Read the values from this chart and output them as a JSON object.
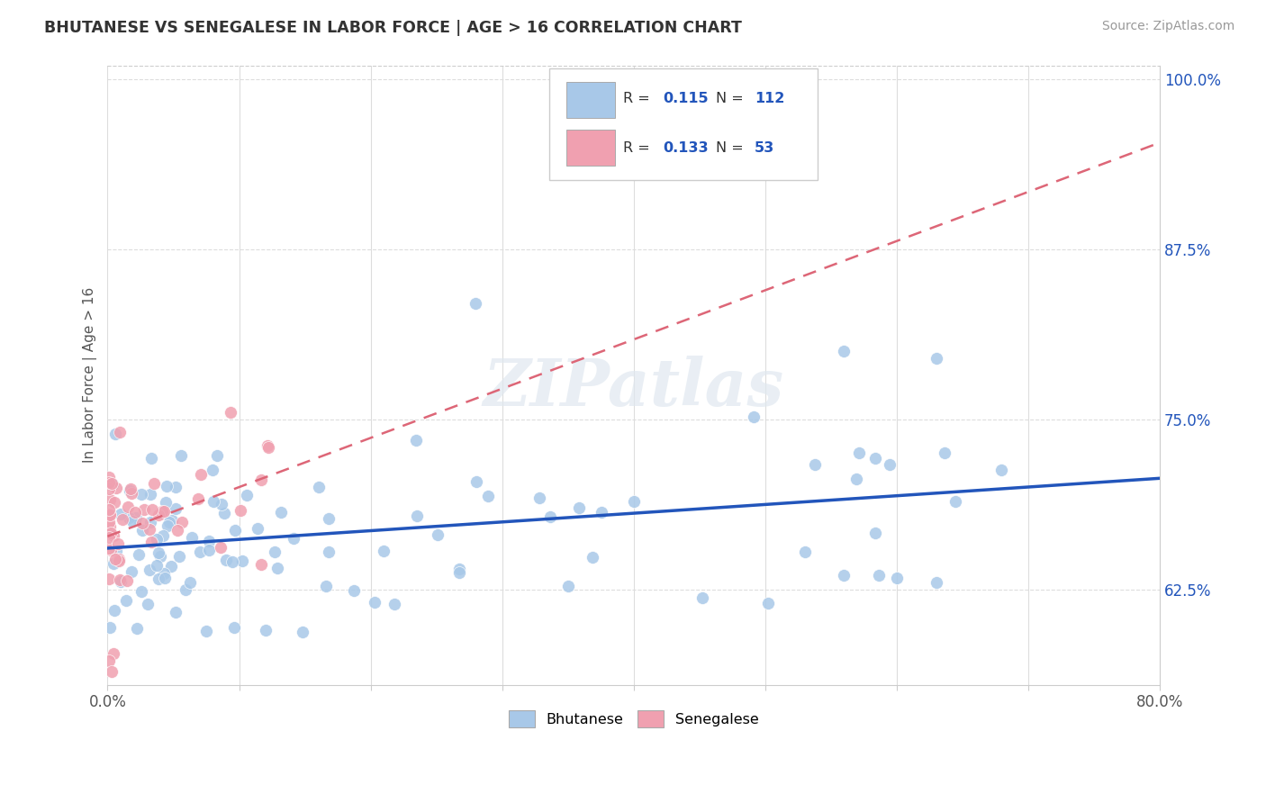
{
  "title": "BHUTANESE VS SENEGALESE IN LABOR FORCE | AGE > 16 CORRELATION CHART",
  "source_text": "Source: ZipAtlas.com",
  "ylabel": "In Labor Force | Age > 16",
  "xlim": [
    0.0,
    0.8
  ],
  "ylim": [
    0.555,
    1.01
  ],
  "xtick_positions": [
    0.0,
    0.1,
    0.2,
    0.3,
    0.4,
    0.5,
    0.6,
    0.7,
    0.8
  ],
  "xticklabels": [
    "0.0%",
    "",
    "",
    "",
    "",
    "",
    "",
    "",
    "80.0%"
  ],
  "ytick_positions": [
    0.625,
    0.75,
    0.875,
    1.0
  ],
  "yticklabels": [
    "62.5%",
    "75.0%",
    "87.5%",
    "100.0%"
  ],
  "bhutanese_color": "#a8c8e8",
  "senegalese_color": "#f0a0b0",
  "bhutanese_trend_color": "#2255bb",
  "senegalese_trend_color": "#dd6677",
  "legend_text_color": "#2255bb",
  "r_bhutanese": 0.115,
  "n_bhutanese": 112,
  "r_senegalese": 0.133,
  "n_senegalese": 53,
  "watermark": "ZIPatlas",
  "background_color": "#ffffff",
  "grid_color": "#dddddd",
  "dashed_boundary_color": "#cccccc"
}
